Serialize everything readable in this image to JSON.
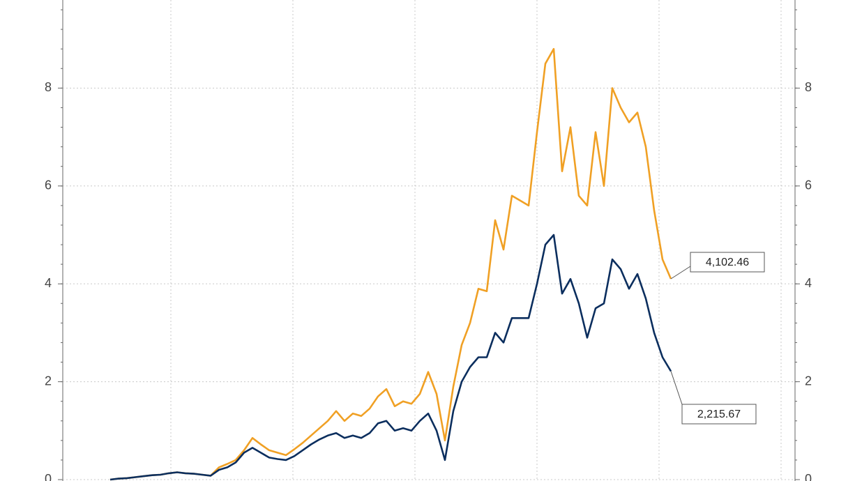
{
  "chart_data": {
    "type": "line",
    "ylim": [
      0,
      9.8
    ],
    "yticks": [
      0,
      2,
      4,
      6,
      8
    ],
    "y2lim": [
      0,
      9.8
    ],
    "y2ticks": [
      0,
      2,
      4,
      6,
      8
    ],
    "grid": true,
    "series": [
      {
        "color": "#f0a024",
        "values": [
          0.0,
          0.02,
          0.03,
          0.05,
          0.07,
          0.09,
          0.1,
          0.13,
          0.15,
          0.13,
          0.12,
          0.1,
          0.08,
          0.25,
          0.32,
          0.4,
          0.6,
          0.85,
          0.72,
          0.6,
          0.55,
          0.5,
          0.62,
          0.75,
          0.9,
          1.05,
          1.2,
          1.4,
          1.2,
          1.35,
          1.3,
          1.45,
          1.7,
          1.85,
          1.5,
          1.6,
          1.55,
          1.75,
          2.2,
          1.75,
          0.8,
          1.9,
          2.75,
          3.2,
          3.9,
          3.85,
          5.3,
          4.7,
          5.8,
          5.7,
          5.6,
          7.1,
          8.5,
          8.8,
          6.3,
          7.2,
          5.8,
          5.6,
          7.1,
          6.0,
          8.0,
          7.6,
          7.3,
          7.5,
          6.8,
          5.5,
          4.5,
          4.10246
        ],
        "value_labels": [
          null,
          null,
          null,
          null,
          null,
          null,
          null,
          null,
          null,
          null,
          null,
          null,
          null,
          null,
          null,
          null,
          null,
          null,
          null,
          null,
          null,
          null,
          null,
          null,
          null,
          null,
          null,
          null,
          null,
          null,
          null,
          null,
          null,
          null,
          null,
          null,
          null,
          null,
          null,
          null,
          null,
          null,
          null,
          null,
          null,
          null,
          null,
          null,
          null,
          null,
          null,
          null,
          null,
          null,
          null,
          null,
          null,
          null,
          null,
          null,
          null,
          null,
          null,
          null,
          null,
          null,
          null,
          "4,102.46"
        ]
      },
      {
        "color": "#0b2e5e",
        "values": [
          0.0,
          0.02,
          0.03,
          0.05,
          0.07,
          0.09,
          0.1,
          0.13,
          0.15,
          0.13,
          0.12,
          0.1,
          0.08,
          0.2,
          0.25,
          0.35,
          0.55,
          0.65,
          0.55,
          0.45,
          0.42,
          0.4,
          0.48,
          0.6,
          0.72,
          0.82,
          0.9,
          0.95,
          0.85,
          0.9,
          0.85,
          0.95,
          1.15,
          1.2,
          1.0,
          1.05,
          1.0,
          1.2,
          1.35,
          1.0,
          0.4,
          1.4,
          2.0,
          2.3,
          2.5,
          2.5,
          3.0,
          2.8,
          3.3,
          3.3,
          3.3,
          4.0,
          4.8,
          5.0,
          3.8,
          4.1,
          3.6,
          2.9,
          3.5,
          3.6,
          4.5,
          4.3,
          3.9,
          4.2,
          3.7,
          3.0,
          2.5,
          2.21567
        ],
        "value_labels": [
          null,
          null,
          null,
          null,
          null,
          null,
          null,
          null,
          null,
          null,
          null,
          null,
          null,
          null,
          null,
          null,
          null,
          null,
          null,
          null,
          null,
          null,
          null,
          null,
          null,
          null,
          null,
          null,
          null,
          null,
          null,
          null,
          null,
          null,
          null,
          null,
          null,
          null,
          null,
          null,
          null,
          null,
          null,
          null,
          null,
          null,
          null,
          null,
          null,
          null,
          null,
          null,
          null,
          null,
          null,
          null,
          null,
          null,
          null,
          null,
          null,
          null,
          null,
          null,
          null,
          null,
          null,
          "2,215.67"
        ]
      }
    ]
  }
}
